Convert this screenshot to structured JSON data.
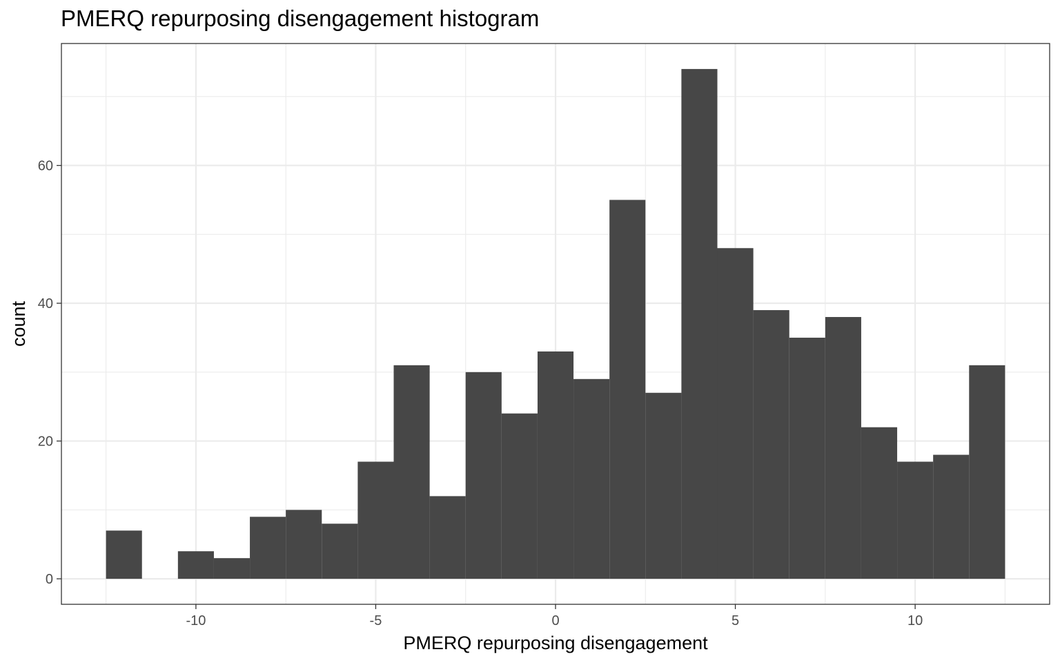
{
  "chart_data": {
    "type": "bar",
    "title": "PMERQ repurposing disengagement histogram",
    "xlabel": "PMERQ repurposing disengagement",
    "ylabel": "count",
    "binwidth": 1,
    "bin_centers": [
      -12,
      -11,
      -10,
      -9,
      -8,
      -7,
      -6,
      -5,
      -4,
      -3,
      -2,
      -1,
      0,
      1,
      2,
      3,
      4,
      5,
      6,
      7,
      8,
      9,
      10,
      11,
      12
    ],
    "values": [
      7,
      0,
      4,
      3,
      9,
      10,
      8,
      17,
      31,
      12,
      30,
      24,
      33,
      29,
      55,
      27,
      74,
      48,
      39,
      35,
      38,
      22,
      17,
      18,
      31
    ],
    "xlim": [
      -13.74,
      13.74
    ],
    "ylim": [
      -3.7,
      77.7
    ],
    "x_ticks": [
      -10,
      -5,
      0,
      5,
      10
    ],
    "x_tick_labels": [
      "-10",
      "-5",
      "0",
      "5",
      "10"
    ],
    "y_ticks": [
      0,
      20,
      40,
      60
    ],
    "y_tick_labels": [
      "0",
      "20",
      "40",
      "60"
    ],
    "grid": true,
    "bar_color": "#474747",
    "grid_color": "#ebebeb",
    "panel_border_color": "#333333"
  }
}
